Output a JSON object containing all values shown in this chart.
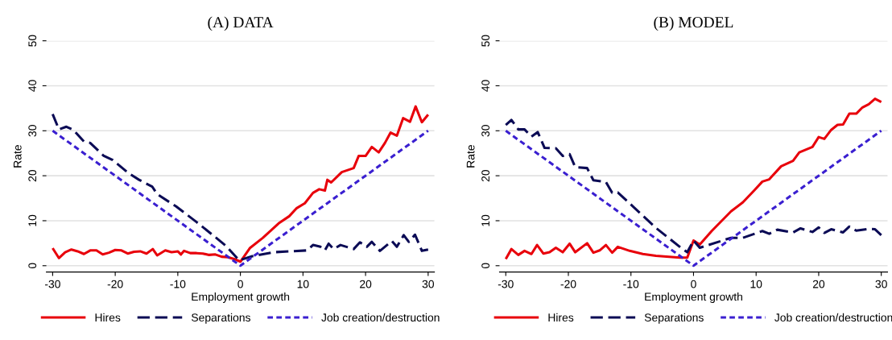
{
  "chart_data": [
    {
      "type": "line",
      "title": "(A) DATA",
      "xlabel": "Employment growth",
      "ylabel": "Rate",
      "xlim": [
        -31,
        31
      ],
      "ylim": [
        -1.4,
        50
      ],
      "xticks": [
        -30,
        -20,
        -10,
        0,
        10,
        20,
        30
      ],
      "yticks": [
        0,
        10,
        20,
        30,
        40,
        50
      ],
      "grid": "y",
      "legend": "bottom",
      "series": [
        {
          "name": "Hires",
          "color": "#e8000b",
          "line_style": "solid",
          "x": [
            -30,
            -29,
            -28,
            -27,
            -26,
            -25,
            -24,
            -23,
            -22,
            -21,
            -20,
            -19,
            -18,
            -17,
            -16,
            -15,
            -14,
            -13.3,
            -12,
            -11,
            -10,
            -9.5,
            -9,
            -8,
            -7,
            -6,
            -5,
            -4,
            -3,
            -2,
            -1,
            0,
            1.5,
            3.6,
            6.1,
            7.8,
            9.0,
            10.3,
            11.6,
            12.6,
            13.5,
            13.9,
            14.5,
            16.2,
            18.1,
            18.9,
            20.0,
            21.0,
            22.1,
            23.1,
            24.0,
            25.0,
            26.0,
            27.1,
            28.0,
            29.0,
            30
          ],
          "values": [
            3.9,
            1.7,
            3.0,
            3.6,
            3.2,
            2.6,
            3.4,
            3.4,
            2.5,
            2.9,
            3.5,
            3.4,
            2.7,
            3.1,
            3.2,
            2.7,
            3.7,
            2.3,
            3.4,
            3.0,
            3.2,
            2.5,
            3.3,
            2.8,
            2.8,
            2.7,
            2.4,
            2.5,
            2.0,
            1.9,
            1.5,
            0.9,
            3.9,
            6.2,
            9.4,
            11.0,
            12.8,
            13.9,
            16.2,
            17.0,
            16.7,
            19.1,
            18.5,
            20.8,
            21.7,
            24.4,
            24.4,
            26.4,
            25.2,
            27.3,
            29.6,
            28.9,
            32.8,
            32.0,
            35.4,
            31.9,
            33.6
          ]
        },
        {
          "name": "Separations",
          "color": "#0b0b55",
          "line_style": "dashed",
          "x": [
            -30,
            -29,
            -27.8,
            -26.7,
            -25,
            -24,
            -21.9,
            -20.4,
            -17.9,
            -16.2,
            -14.1,
            -13.3,
            -10.3,
            -7,
            -4.4,
            -2.3,
            -0.2,
            1.9,
            5.3,
            10.7,
            11.6,
            12.8,
            13.5,
            14.1,
            14.9,
            16.0,
            18.1,
            19.1,
            20.2,
            21.0,
            22.3,
            24.2,
            25.0,
            26.1,
            26.9,
            27.9,
            29.0,
            30
          ],
          "values": [
            33.7,
            30.3,
            30.9,
            30.2,
            27.6,
            27.3,
            24.5,
            23.5,
            20.6,
            19.1,
            17.6,
            15.9,
            13.2,
            9.7,
            6.8,
            4.4,
            1.2,
            2.1,
            3.0,
            3.4,
            4.6,
            4.2,
            3.4,
            4.9,
            3.7,
            4.6,
            3.7,
            5.2,
            4.2,
            5.3,
            3.3,
            5.5,
            4.2,
            6.8,
            5.3,
            6.9,
            3.3,
            3.6
          ]
        },
        {
          "name": "Job creation/destruction",
          "color": "#3a1fd0",
          "line_style": "dotted",
          "x": [
            -30,
            0,
            30
          ],
          "values": [
            30,
            0,
            30
          ]
        }
      ]
    },
    {
      "type": "line",
      "title": "(B) MODEL",
      "xlabel": "Employment growth",
      "ylabel": "Rate",
      "xlim": [
        -31,
        31
      ],
      "ylim": [
        -1.4,
        50
      ],
      "xticks": [
        -30,
        -20,
        -10,
        0,
        10,
        20,
        30
      ],
      "yticks": [
        0,
        10,
        20,
        30,
        40,
        50
      ],
      "grid": "y",
      "legend": "bottom",
      "series": [
        {
          "name": "Hires",
          "color": "#e8000b",
          "line_style": "solid",
          "x": [
            -30,
            -29.1,
            -28,
            -27,
            -25.9,
            -25,
            -24,
            -23,
            -22,
            -20.9,
            -19.8,
            -18.9,
            -17,
            -16,
            -15,
            -14,
            -13,
            -12.1,
            -10.2,
            -8.1,
            -6,
            -2.2,
            -1,
            0,
            1,
            2.9,
            6,
            7.9,
            9.8,
            11,
            12.1,
            14,
            15.9,
            16.9,
            19,
            20,
            20.9,
            22,
            23,
            23.9,
            24.9,
            26,
            27,
            28,
            29,
            30
          ],
          "values": [
            1.5,
            3.7,
            2.4,
            3.3,
            2.6,
            4.6,
            2.7,
            3.0,
            4.0,
            3.0,
            4.9,
            3.0,
            5.0,
            2.9,
            3.4,
            4.6,
            2.9,
            4.2,
            3.3,
            2.6,
            2.2,
            1.8,
            1.8,
            5.6,
            4.7,
            7.7,
            12.1,
            14.1,
            16.9,
            18.7,
            19.2,
            22.1,
            23.3,
            25.2,
            26.4,
            28.6,
            28.2,
            30.2,
            31.3,
            31.4,
            33.8,
            33.8,
            35.2,
            35.9,
            37.1,
            36.4
          ]
        },
        {
          "name": "Separations",
          "color": "#0b0b55",
          "line_style": "dashed",
          "x": [
            -30,
            -29.1,
            -28,
            -27,
            -25.9,
            -24.9,
            -23.8,
            -22,
            -20.9,
            -19.8,
            -18.9,
            -17,
            -16,
            -14,
            -13,
            -12.1,
            -6,
            -2.2,
            -1,
            0,
            1,
            6,
            7.9,
            11,
            12.1,
            13.4,
            15.9,
            17.1,
            19,
            20,
            20.9,
            22,
            23.9,
            24.9,
            26,
            28,
            29,
            30
          ],
          "values": [
            31.3,
            32.4,
            30.3,
            30.3,
            28.7,
            29.7,
            26.2,
            26.1,
            24.4,
            24.8,
            21.9,
            21.7,
            19.0,
            18.6,
            16.2,
            16.3,
            8.4,
            4.2,
            3.0,
            5.6,
            4.0,
            6.2,
            6.2,
            7.7,
            7.1,
            8.0,
            7.4,
            8.3,
            7.5,
            8.5,
            7.3,
            8.1,
            7.4,
            8.7,
            7.8,
            8.2,
            8.1,
            6.8
          ]
        },
        {
          "name": "Job creation/destruction",
          "color": "#3a1fd0",
          "line_style": "dotted",
          "x": [
            -30,
            0,
            30
          ],
          "values": [
            30,
            0,
            30
          ]
        }
      ]
    }
  ]
}
